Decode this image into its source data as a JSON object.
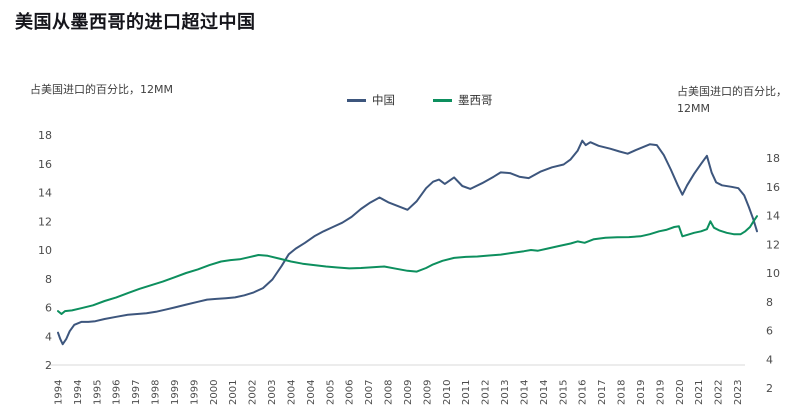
{
  "title": "美国从墨西哥的进口超过中国",
  "left_axis": {
    "unit_label": "占美国进口的百分比，12MM"
  },
  "right_axis": {
    "unit_label_line1": "占美国进口的百分比，",
    "unit_label_line2": "12MM"
  },
  "chart_data": {
    "type": "line",
    "title": "美国从墨西哥的进口超过中国",
    "xlabel": "",
    "ylabel": "占美国进口的百分比，12MM",
    "x_range": [
      1994,
      2024
    ],
    "ylim": [
      2,
      18
    ],
    "grid": "single bottom gridline only",
    "legend_position": "top-center",
    "gridline_color": "#d9d9d9",
    "x_tick_interval_years": 0.8333,
    "x_tick_labels": [
      "1994",
      "1994",
      "1995",
      "1996",
      "1997",
      "1998",
      "1999",
      "1999",
      "2000",
      "2001",
      "2002",
      "2003",
      "2004",
      "2004",
      "2005",
      "2006",
      "2007",
      "2008",
      "2009",
      "2009",
      "2010",
      "2011",
      "2012",
      "2013",
      "2014",
      "2014",
      "2015",
      "2016",
      "2017",
      "2018",
      "2019",
      "2019",
      "2020",
      "2021",
      "2022",
      "2023"
    ],
    "left_ticks": [
      18,
      16,
      14,
      12,
      10,
      8,
      6,
      4,
      2
    ],
    "right_ticks": [
      18,
      16,
      14,
      12,
      10,
      8,
      6,
      4,
      2
    ],
    "right_axis_offset_vs_left": 1.6,
    "series": [
      {
        "name": "中国",
        "color": "#3d567d",
        "points": [
          [
            1994.0,
            4.25
          ],
          [
            1994.1,
            3.8
          ],
          [
            1994.2,
            3.45
          ],
          [
            1994.35,
            3.8
          ],
          [
            1994.5,
            4.35
          ],
          [
            1994.7,
            4.8
          ],
          [
            1995.0,
            5.0
          ],
          [
            1995.3,
            5.0
          ],
          [
            1995.6,
            5.05
          ],
          [
            1996.0,
            5.2
          ],
          [
            1996.5,
            5.35
          ],
          [
            1997.0,
            5.5
          ],
          [
            1997.4,
            5.55
          ],
          [
            1997.8,
            5.6
          ],
          [
            1998.2,
            5.7
          ],
          [
            1998.6,
            5.85
          ],
          [
            1999.0,
            6.0
          ],
          [
            1999.5,
            6.2
          ],
          [
            2000.0,
            6.4
          ],
          [
            2000.4,
            6.55
          ],
          [
            2000.8,
            6.6
          ],
          [
            2001.2,
            6.65
          ],
          [
            2001.6,
            6.7
          ],
          [
            2002.0,
            6.85
          ],
          [
            2002.4,
            7.05
          ],
          [
            2002.8,
            7.35
          ],
          [
            2003.2,
            7.95
          ],
          [
            2003.6,
            8.9
          ],
          [
            2003.9,
            9.7
          ],
          [
            2004.2,
            10.1
          ],
          [
            2004.6,
            10.5
          ],
          [
            2005.0,
            10.95
          ],
          [
            2005.4,
            11.3
          ],
          [
            2005.8,
            11.6
          ],
          [
            2006.2,
            11.9
          ],
          [
            2006.6,
            12.3
          ],
          [
            2007.0,
            12.85
          ],
          [
            2007.4,
            13.3
          ],
          [
            2007.8,
            13.65
          ],
          [
            2008.2,
            13.3
          ],
          [
            2008.6,
            13.05
          ],
          [
            2009.0,
            12.8
          ],
          [
            2009.4,
            13.4
          ],
          [
            2009.8,
            14.3
          ],
          [
            2010.1,
            14.75
          ],
          [
            2010.35,
            14.9
          ],
          [
            2010.6,
            14.6
          ],
          [
            2011.0,
            15.05
          ],
          [
            2011.35,
            14.45
          ],
          [
            2011.7,
            14.25
          ],
          [
            2012.2,
            14.65
          ],
          [
            2012.7,
            15.1
          ],
          [
            2013.0,
            15.4
          ],
          [
            2013.4,
            15.35
          ],
          [
            2013.8,
            15.1
          ],
          [
            2014.2,
            15.0
          ],
          [
            2014.7,
            15.45
          ],
          [
            2015.2,
            15.75
          ],
          [
            2015.7,
            15.95
          ],
          [
            2016.0,
            16.3
          ],
          [
            2016.3,
            16.9
          ],
          [
            2016.5,
            17.6
          ],
          [
            2016.65,
            17.3
          ],
          [
            2016.85,
            17.5
          ],
          [
            2017.2,
            17.25
          ],
          [
            2017.7,
            17.05
          ],
          [
            2018.1,
            16.85
          ],
          [
            2018.45,
            16.7
          ],
          [
            2018.8,
            16.95
          ],
          [
            2019.1,
            17.15
          ],
          [
            2019.4,
            17.35
          ],
          [
            2019.7,
            17.3
          ],
          [
            2020.0,
            16.6
          ],
          [
            2020.3,
            15.6
          ],
          [
            2020.6,
            14.5
          ],
          [
            2020.8,
            13.85
          ],
          [
            2021.0,
            14.5
          ],
          [
            2021.3,
            15.3
          ],
          [
            2021.6,
            16.0
          ],
          [
            2021.85,
            16.55
          ],
          [
            2022.05,
            15.4
          ],
          [
            2022.25,
            14.7
          ],
          [
            2022.5,
            14.5
          ],
          [
            2022.9,
            14.4
          ],
          [
            2023.2,
            14.3
          ],
          [
            2023.45,
            13.8
          ],
          [
            2023.65,
            13.0
          ],
          [
            2023.85,
            12.1
          ],
          [
            2024.0,
            11.3
          ]
        ]
      },
      {
        "name": "墨西哥",
        "color": "#0d8f5e",
        "points": [
          [
            1994.0,
            5.75
          ],
          [
            1994.15,
            5.55
          ],
          [
            1994.3,
            5.75
          ],
          [
            1994.6,
            5.8
          ],
          [
            1995.0,
            5.95
          ],
          [
            1995.5,
            6.15
          ],
          [
            1996.0,
            6.45
          ],
          [
            1996.5,
            6.7
          ],
          [
            1997.0,
            7.0
          ],
          [
            1997.5,
            7.3
          ],
          [
            1998.0,
            7.55
          ],
          [
            1998.5,
            7.8
          ],
          [
            1999.0,
            8.1
          ],
          [
            1999.5,
            8.4
          ],
          [
            2000.0,
            8.65
          ],
          [
            2000.5,
            8.95
          ],
          [
            2001.0,
            9.2
          ],
          [
            2001.4,
            9.3
          ],
          [
            2001.8,
            9.35
          ],
          [
            2002.2,
            9.5
          ],
          [
            2002.6,
            9.65
          ],
          [
            2003.0,
            9.6
          ],
          [
            2003.5,
            9.4
          ],
          [
            2004.0,
            9.2
          ],
          [
            2004.5,
            9.05
          ],
          [
            2005.0,
            8.95
          ],
          [
            2005.5,
            8.85
          ],
          [
            2006.0,
            8.78
          ],
          [
            2006.5,
            8.72
          ],
          [
            2007.0,
            8.75
          ],
          [
            2007.5,
            8.8
          ],
          [
            2008.0,
            8.85
          ],
          [
            2008.5,
            8.7
          ],
          [
            2009.0,
            8.55
          ],
          [
            2009.4,
            8.5
          ],
          [
            2009.8,
            8.75
          ],
          [
            2010.1,
            9.0
          ],
          [
            2010.5,
            9.25
          ],
          [
            2011.0,
            9.45
          ],
          [
            2011.5,
            9.52
          ],
          [
            2012.0,
            9.55
          ],
          [
            2012.5,
            9.62
          ],
          [
            2013.0,
            9.68
          ],
          [
            2013.5,
            9.8
          ],
          [
            2014.0,
            9.92
          ],
          [
            2014.3,
            10.0
          ],
          [
            2014.6,
            9.95
          ],
          [
            2015.0,
            10.1
          ],
          [
            2015.5,
            10.28
          ],
          [
            2016.0,
            10.45
          ],
          [
            2016.3,
            10.6
          ],
          [
            2016.6,
            10.5
          ],
          [
            2017.0,
            10.75
          ],
          [
            2017.5,
            10.85
          ],
          [
            2018.0,
            10.88
          ],
          [
            2018.5,
            10.9
          ],
          [
            2019.0,
            10.95
          ],
          [
            2019.4,
            11.1
          ],
          [
            2019.8,
            11.3
          ],
          [
            2020.1,
            11.4
          ],
          [
            2020.45,
            11.6
          ],
          [
            2020.65,
            11.65
          ],
          [
            2020.8,
            10.95
          ],
          [
            2021.0,
            11.05
          ],
          [
            2021.3,
            11.2
          ],
          [
            2021.6,
            11.3
          ],
          [
            2021.85,
            11.45
          ],
          [
            2022.0,
            12.0
          ],
          [
            2022.15,
            11.55
          ],
          [
            2022.4,
            11.35
          ],
          [
            2022.7,
            11.2
          ],
          [
            2023.0,
            11.1
          ],
          [
            2023.3,
            11.1
          ],
          [
            2023.5,
            11.3
          ],
          [
            2023.7,
            11.6
          ],
          [
            2023.85,
            12.0
          ],
          [
            2024.0,
            12.35
          ]
        ]
      }
    ]
  }
}
